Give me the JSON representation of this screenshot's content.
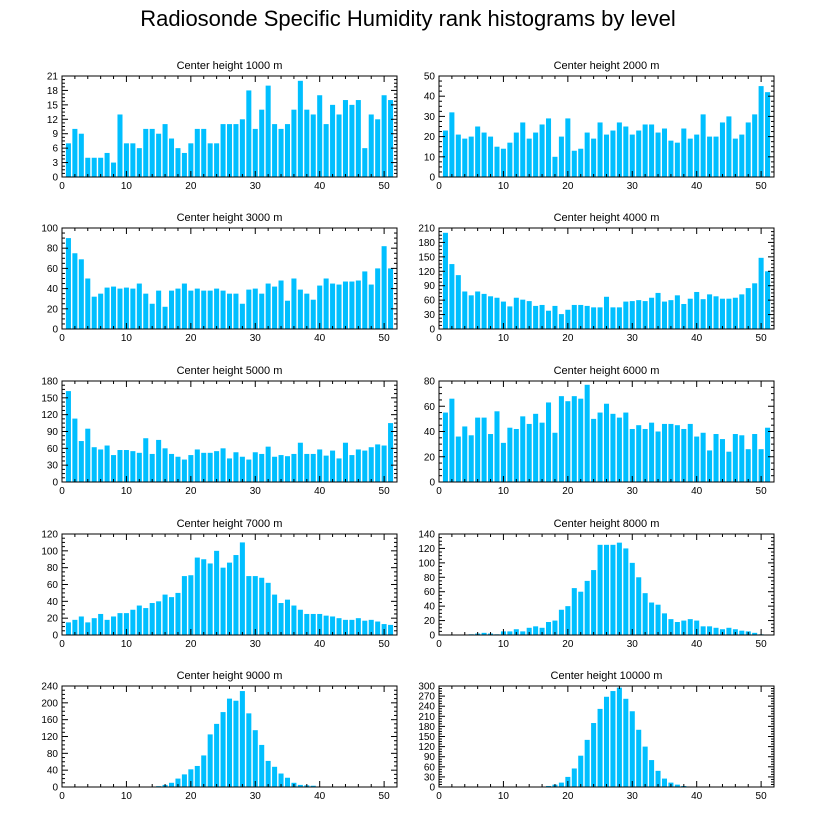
{
  "title": "Radiosonde Specific Humidity rank histograms by level",
  "colors": {
    "bar": "#00BFFF",
    "axis": "#000000",
    "background": "#FFFFFF"
  },
  "chart_data": [
    {
      "type": "bar",
      "title": "Center height 1000 m",
      "xlim": [
        0,
        52
      ],
      "ylim": [
        0,
        21
      ],
      "xticks": [
        0,
        10,
        20,
        30,
        40,
        50
      ],
      "yticks": [
        0,
        3,
        6,
        9,
        12,
        15,
        18,
        21
      ],
      "x": [
        1,
        2,
        3,
        4,
        5,
        6,
        7,
        8,
        9,
        10,
        11,
        12,
        13,
        14,
        15,
        16,
        17,
        18,
        19,
        20,
        21,
        22,
        23,
        24,
        25,
        26,
        27,
        28,
        29,
        30,
        31,
        32,
        33,
        34,
        35,
        36,
        37,
        38,
        39,
        40,
        41,
        42,
        43,
        44,
        45,
        46,
        47,
        48,
        49,
        50,
        51
      ],
      "values": [
        7,
        10,
        9,
        4,
        4,
        4,
        5,
        3,
        13,
        7,
        7,
        6,
        10,
        10,
        9,
        11,
        8,
        6,
        5,
        7,
        10,
        10,
        7,
        7,
        11,
        11,
        11,
        12,
        18,
        10,
        14,
        19,
        11,
        10,
        11,
        14,
        20,
        14,
        13,
        17,
        11,
        15,
        13,
        16,
        15,
        16,
        6,
        13,
        12,
        17,
        16
      ]
    },
    {
      "type": "bar",
      "title": "Center height 2000 m",
      "xlim": [
        0,
        52
      ],
      "ylim": [
        0,
        50
      ],
      "xticks": [
        0,
        10,
        20,
        30,
        40,
        50
      ],
      "yticks": [
        0,
        10,
        20,
        30,
        40,
        50
      ],
      "x": [
        1,
        2,
        3,
        4,
        5,
        6,
        7,
        8,
        9,
        10,
        11,
        12,
        13,
        14,
        15,
        16,
        17,
        18,
        19,
        20,
        21,
        22,
        23,
        24,
        25,
        26,
        27,
        28,
        29,
        30,
        31,
        32,
        33,
        34,
        35,
        36,
        37,
        38,
        39,
        40,
        41,
        42,
        43,
        44,
        45,
        46,
        47,
        48,
        49,
        50,
        51
      ],
      "values": [
        23,
        32,
        21,
        19,
        20,
        25,
        22,
        20,
        15,
        14,
        17,
        22,
        27,
        19,
        22,
        26,
        29,
        10,
        20,
        29,
        13,
        14,
        22,
        19,
        27,
        21,
        23,
        27,
        25,
        21,
        23,
        26,
        26,
        22,
        24,
        18,
        17,
        24,
        19,
        21,
        31,
        20,
        20,
        27,
        30,
        19,
        21,
        27,
        31,
        45,
        42
      ]
    },
    {
      "type": "bar",
      "title": "Center height 3000 m",
      "xlim": [
        0,
        52
      ],
      "ylim": [
        0,
        100
      ],
      "xticks": [
        0,
        10,
        20,
        30,
        40,
        50
      ],
      "yticks": [
        0,
        20,
        40,
        60,
        80,
        100
      ],
      "x": [
        1,
        2,
        3,
        4,
        5,
        6,
        7,
        8,
        9,
        10,
        11,
        12,
        13,
        14,
        15,
        16,
        17,
        18,
        19,
        20,
        21,
        22,
        23,
        24,
        25,
        26,
        27,
        28,
        29,
        30,
        31,
        32,
        33,
        34,
        35,
        36,
        37,
        38,
        39,
        40,
        41,
        42,
        43,
        44,
        45,
        46,
        47,
        48,
        49,
        50,
        51
      ],
      "values": [
        90,
        75,
        69,
        50,
        32,
        35,
        41,
        42,
        40,
        41,
        40,
        45,
        35,
        25,
        38,
        22,
        38,
        40,
        45,
        38,
        40,
        38,
        38,
        40,
        38,
        35,
        35,
        25,
        39,
        40,
        35,
        45,
        42,
        48,
        28,
        50,
        39,
        35,
        29,
        43,
        50,
        45,
        44,
        47,
        47,
        48,
        57,
        44,
        60,
        82,
        60
      ]
    },
    {
      "type": "bar",
      "title": "Center height 4000 m",
      "xlim": [
        0,
        52
      ],
      "ylim": [
        0,
        210
      ],
      "xticks": [
        0,
        10,
        20,
        30,
        40,
        50
      ],
      "yticks": [
        0,
        30,
        60,
        90,
        120,
        150,
        180,
        210
      ],
      "x": [
        1,
        2,
        3,
        4,
        5,
        6,
        7,
        8,
        9,
        10,
        11,
        12,
        13,
        14,
        15,
        16,
        17,
        18,
        19,
        20,
        21,
        22,
        23,
        24,
        25,
        26,
        27,
        28,
        29,
        30,
        31,
        32,
        33,
        34,
        35,
        36,
        37,
        38,
        39,
        40,
        41,
        42,
        43,
        44,
        45,
        46,
        47,
        48,
        49,
        50,
        51
      ],
      "values": [
        200,
        135,
        112,
        78,
        70,
        78,
        73,
        68,
        65,
        57,
        47,
        65,
        61,
        58,
        48,
        50,
        38,
        48,
        31,
        40,
        50,
        50,
        48,
        45,
        45,
        67,
        45,
        45,
        57,
        58,
        60,
        58,
        65,
        75,
        57,
        60,
        70,
        52,
        63,
        77,
        62,
        72,
        68,
        63,
        63,
        65,
        72,
        85,
        95,
        148,
        120
      ]
    },
    {
      "type": "bar",
      "title": "Center height 5000 m",
      "xlim": [
        0,
        52
      ],
      "ylim": [
        0,
        180
      ],
      "xticks": [
        0,
        10,
        20,
        30,
        40,
        50
      ],
      "yticks": [
        0,
        30,
        60,
        90,
        120,
        150,
        180
      ],
      "x": [
        1,
        2,
        3,
        4,
        5,
        6,
        7,
        8,
        9,
        10,
        11,
        12,
        13,
        14,
        15,
        16,
        17,
        18,
        19,
        20,
        21,
        22,
        23,
        24,
        25,
        26,
        27,
        28,
        29,
        30,
        31,
        32,
        33,
        34,
        35,
        36,
        37,
        38,
        39,
        40,
        41,
        42,
        43,
        44,
        45,
        46,
        47,
        48,
        49,
        50,
        51
      ],
      "values": [
        162,
        113,
        73,
        95,
        62,
        58,
        65,
        48,
        57,
        57,
        55,
        52,
        78,
        50,
        75,
        60,
        50,
        45,
        40,
        48,
        58,
        52,
        52,
        55,
        60,
        42,
        53,
        45,
        40,
        53,
        50,
        63,
        45,
        48,
        46,
        50,
        70,
        50,
        50,
        58,
        47,
        56,
        42,
        70,
        48,
        58,
        56,
        62,
        67,
        65,
        105
      ]
    },
    {
      "type": "bar",
      "title": "Center height 6000 m",
      "xlim": [
        0,
        52
      ],
      "ylim": [
        0,
        80
      ],
      "xticks": [
        0,
        10,
        20,
        30,
        40,
        50
      ],
      "yticks": [
        0,
        20,
        40,
        60,
        80
      ],
      "x": [
        1,
        2,
        3,
        4,
        5,
        6,
        7,
        8,
        9,
        10,
        11,
        12,
        13,
        14,
        15,
        16,
        17,
        18,
        19,
        20,
        21,
        22,
        23,
        24,
        25,
        26,
        27,
        28,
        29,
        30,
        31,
        32,
        33,
        34,
        35,
        36,
        37,
        38,
        39,
        40,
        41,
        42,
        43,
        44,
        45,
        46,
        47,
        48,
        49,
        50,
        51
      ],
      "values": [
        55,
        66,
        36,
        44,
        37,
        51,
        51,
        38,
        56,
        31,
        43,
        42,
        52,
        46,
        54,
        47,
        63,
        39,
        68,
        64,
        68,
        66,
        77,
        50,
        55,
        62,
        54,
        51,
        55,
        42,
        45,
        42,
        47,
        40,
        46,
        46,
        45,
        42,
        46,
        36,
        39,
        25,
        38,
        34,
        24,
        38,
        37,
        26,
        38,
        26,
        43
      ]
    },
    {
      "type": "bar",
      "title": "Center height 7000 m",
      "xlim": [
        0,
        52
      ],
      "ylim": [
        0,
        120
      ],
      "xticks": [
        0,
        10,
        20,
        30,
        40,
        50
      ],
      "yticks": [
        0,
        20,
        40,
        60,
        80,
        100,
        120
      ],
      "x": [
        1,
        2,
        3,
        4,
        5,
        6,
        7,
        8,
        9,
        10,
        11,
        12,
        13,
        14,
        15,
        16,
        17,
        18,
        19,
        20,
        21,
        22,
        23,
        24,
        25,
        26,
        27,
        28,
        29,
        30,
        31,
        32,
        33,
        34,
        35,
        36,
        37,
        38,
        39,
        40,
        41,
        42,
        43,
        44,
        45,
        46,
        47,
        48,
        49,
        50,
        51
      ],
      "values": [
        15,
        18,
        22,
        15,
        20,
        25,
        18,
        22,
        26,
        26,
        30,
        35,
        32,
        38,
        40,
        48,
        45,
        50,
        70,
        71,
        92,
        90,
        85,
        100,
        80,
        86,
        95,
        110,
        70,
        70,
        68,
        62,
        48,
        38,
        42,
        35,
        30,
        25,
        25,
        25,
        23,
        22,
        20,
        18,
        18,
        20,
        17,
        18,
        16,
        13,
        12
      ]
    },
    {
      "type": "bar",
      "title": "Center height 8000 m",
      "xlim": [
        0,
        52
      ],
      "ylim": [
        0,
        140
      ],
      "xticks": [
        0,
        10,
        20,
        30,
        40,
        50
      ],
      "yticks": [
        0,
        20,
        40,
        60,
        80,
        100,
        120,
        140
      ],
      "x": [
        1,
        2,
        3,
        4,
        5,
        6,
        7,
        8,
        9,
        10,
        11,
        12,
        13,
        14,
        15,
        16,
        17,
        18,
        19,
        20,
        21,
        22,
        23,
        24,
        25,
        26,
        27,
        28,
        29,
        30,
        31,
        32,
        33,
        34,
        35,
        36,
        37,
        38,
        39,
        40,
        41,
        42,
        43,
        44,
        45,
        46,
        47,
        48,
        49,
        50,
        51
      ],
      "values": [
        0,
        0,
        0,
        0,
        1,
        2,
        3,
        2,
        1,
        5,
        5,
        8,
        5,
        10,
        12,
        10,
        18,
        20,
        35,
        40,
        65,
        60,
        75,
        90,
        125,
        125,
        125,
        128,
        120,
        100,
        80,
        58,
        45,
        42,
        30,
        22,
        18,
        20,
        22,
        20,
        12,
        12,
        10,
        8,
        10,
        8,
        6,
        5,
        3,
        1,
        0
      ]
    },
    {
      "type": "bar",
      "title": "Center height 9000 m",
      "xlim": [
        0,
        52
      ],
      "ylim": [
        0,
        240
      ],
      "xticks": [
        0,
        10,
        20,
        30,
        40,
        50
      ],
      "yticks": [
        0,
        40,
        80,
        120,
        160,
        200,
        240
      ],
      "x": [
        1,
        2,
        3,
        4,
        5,
        6,
        7,
        8,
        9,
        10,
        11,
        12,
        13,
        14,
        15,
        16,
        17,
        18,
        19,
        20,
        21,
        22,
        23,
        24,
        25,
        26,
        27,
        28,
        29,
        30,
        31,
        32,
        33,
        34,
        35,
        36,
        37,
        38,
        39,
        40,
        41,
        42,
        43,
        44,
        45,
        46,
        47,
        48,
        49,
        50,
        51
      ],
      "values": [
        0,
        0,
        0,
        0,
        0,
        0,
        0,
        0,
        0,
        0,
        1,
        1,
        0,
        0,
        2,
        5,
        10,
        20,
        30,
        42,
        50,
        75,
        125,
        150,
        178,
        210,
        205,
        228,
        175,
        135,
        100,
        62,
        48,
        32,
        22,
        10,
        5,
        4,
        3,
        1,
        0,
        0,
        0,
        0,
        0,
        0,
        0,
        0,
        0,
        0,
        0
      ]
    },
    {
      "type": "bar",
      "title": "Center height 10000 m",
      "xlim": [
        0,
        52
      ],
      "ylim": [
        0,
        300
      ],
      "xticks": [
        0,
        10,
        20,
        30,
        40,
        50
      ],
      "yticks": [
        0,
        30,
        60,
        90,
        120,
        150,
        180,
        210,
        240,
        270,
        300
      ],
      "x": [
        1,
        2,
        3,
        4,
        5,
        6,
        7,
        8,
        9,
        10,
        11,
        12,
        13,
        14,
        15,
        16,
        17,
        18,
        19,
        20,
        21,
        22,
        23,
        24,
        25,
        26,
        27,
        28,
        29,
        30,
        31,
        32,
        33,
        34,
        35,
        36,
        37,
        38,
        39,
        40,
        41,
        42,
        43,
        44,
        45,
        46,
        47,
        48,
        49,
        50,
        51
      ],
      "values": [
        0,
        0,
        0,
        0,
        0,
        0,
        0,
        0,
        0,
        0,
        0,
        0,
        0,
        0,
        0,
        0,
        3,
        7,
        13,
        30,
        55,
        93,
        140,
        190,
        232,
        268,
        285,
        295,
        262,
        225,
        170,
        120,
        80,
        48,
        25,
        13,
        7,
        3,
        1,
        0,
        0,
        0,
        0,
        0,
        0,
        0,
        0,
        0,
        0,
        0,
        0
      ]
    }
  ]
}
